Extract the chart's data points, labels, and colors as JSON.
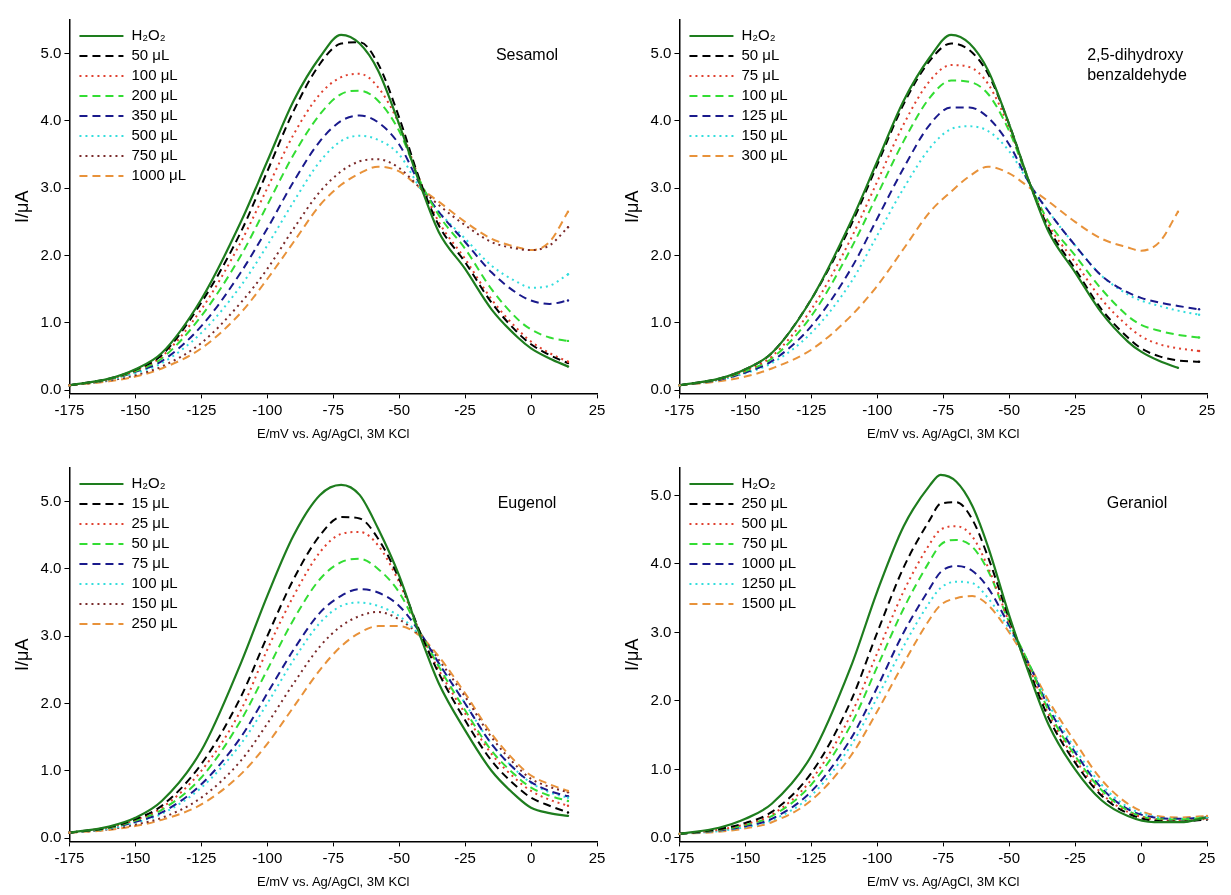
{
  "chart_data": [
    {
      "type": "line",
      "annotations": [
        "Sesamol"
      ],
      "xlabel": "E/mV vs. Ag/AgCl, 3M KCl",
      "ylabel": "I/μA",
      "legend": "top left",
      "xlim": [
        -175,
        25
      ],
      "xticks": [
        -175,
        -150,
        -125,
        -100,
        -75,
        -50,
        -25,
        0,
        25
      ],
      "ylim": [
        -0.05,
        5.5
      ],
      "yticks": [
        {
          "value": 0,
          "label": "0.0"
        },
        {
          "value": 1,
          "label": "1.0"
        },
        {
          "value": 2,
          "label": "2.0"
        },
        {
          "value": 3,
          "label": "3.0"
        },
        {
          "value": 4,
          "label": "4.0"
        },
        {
          "value": 5,
          "label": "5.0"
        }
      ],
      "x": [
        -175,
        -160,
        -150,
        -140,
        -125,
        -110,
        -100,
        -90,
        -80,
        -72,
        -65,
        -58,
        -50,
        -42,
        -35,
        -25,
        -15,
        -5,
        0,
        7,
        14
      ],
      "series": [
        {
          "name": "H₂O₂",
          "color": "#1e7d1e",
          "line_style": "solid",
          "values": [
            0.07,
            0.17,
            0.31,
            0.55,
            1.35,
            2.5,
            3.4,
            4.3,
            4.95,
            5.28,
            5.15,
            4.75,
            3.95,
            3.05,
            2.35,
            1.8,
            1.2,
            0.78,
            0.62,
            0.47,
            0.35
          ]
        },
        {
          "name": "50 μL",
          "color": "#000000",
          "line_style": "dashed",
          "values": [
            0.07,
            0.17,
            0.3,
            0.52,
            1.3,
            2.35,
            3.25,
            4.15,
            4.85,
            5.15,
            5.17,
            4.85,
            4.05,
            3.1,
            2.45,
            1.9,
            1.3,
            0.85,
            0.68,
            0.52,
            0.4
          ]
        },
        {
          "name": "100 μL",
          "color": "#e0402f",
          "line_style": "dotted",
          "values": [
            0.07,
            0.16,
            0.29,
            0.5,
            1.2,
            2.2,
            3.0,
            3.8,
            4.4,
            4.65,
            4.7,
            4.5,
            3.95,
            3.1,
            2.5,
            1.95,
            1.35,
            0.9,
            0.72,
            0.55,
            0.42
          ]
        },
        {
          "name": "200 μL",
          "color": "#33dd33",
          "line_style": "dashed",
          "values": [
            0.07,
            0.16,
            0.28,
            0.47,
            1.1,
            2.0,
            2.75,
            3.5,
            4.1,
            4.4,
            4.45,
            4.3,
            3.85,
            3.1,
            2.6,
            2.1,
            1.5,
            1.05,
            0.9,
            0.78,
            0.73
          ]
        },
        {
          "name": "350 μL",
          "color": "#1a1a8c",
          "line_style": "dashed",
          "values": [
            0.07,
            0.16,
            0.27,
            0.43,
            0.95,
            1.75,
            2.4,
            3.1,
            3.7,
            4.0,
            4.08,
            3.98,
            3.65,
            3.05,
            2.65,
            2.2,
            1.75,
            1.43,
            1.33,
            1.28,
            1.33
          ]
        },
        {
          "name": "500 μL",
          "color": "#33dddd",
          "line_style": "dotted",
          "values": [
            0.07,
            0.15,
            0.25,
            0.4,
            0.85,
            1.55,
            2.15,
            2.8,
            3.4,
            3.7,
            3.78,
            3.72,
            3.5,
            3.0,
            2.65,
            2.25,
            1.85,
            1.6,
            1.52,
            1.55,
            1.72
          ]
        },
        {
          "name": "750 μL",
          "color": "#7a2a2a",
          "line_style": "dotted",
          "values": [
            0.07,
            0.14,
            0.22,
            0.35,
            0.7,
            1.3,
            1.8,
            2.4,
            2.95,
            3.25,
            3.4,
            3.43,
            3.3,
            3.0,
            2.75,
            2.45,
            2.2,
            2.1,
            2.08,
            2.15,
            2.42
          ]
        },
        {
          "name": "1000 μL",
          "color": "#e8923a",
          "line_style": "dashed",
          "values": [
            0.07,
            0.13,
            0.2,
            0.32,
            0.62,
            1.15,
            1.65,
            2.2,
            2.75,
            3.05,
            3.22,
            3.32,
            3.25,
            3.0,
            2.8,
            2.5,
            2.25,
            2.12,
            2.08,
            2.2,
            2.65
          ]
        }
      ]
    },
    {
      "type": "line",
      "annotations": [
        "2,5-dihydroxy benzaldehyde"
      ],
      "xlabel": "E/mV vs. Ag/AgCl, 3M KCl",
      "ylabel": "I/μA",
      "legend": "top left",
      "xlim": [
        -175,
        25
      ],
      "xticks": [
        -175,
        -150,
        -125,
        -100,
        -75,
        -50,
        -25,
        0,
        25
      ],
      "ylim": [
        -0.05,
        5.5
      ],
      "yticks": [
        {
          "value": 0,
          "label": "0.0"
        },
        {
          "value": 1,
          "label": "1.0"
        },
        {
          "value": 2,
          "label": "2.0"
        },
        {
          "value": 3,
          "label": "3.0"
        },
        {
          "value": 4,
          "label": "4.0"
        },
        {
          "value": 5,
          "label": "5.0"
        }
      ],
      "x": [
        -175,
        -160,
        -150,
        -140,
        -125,
        -110,
        -100,
        -90,
        -80,
        -72,
        -65,
        -58,
        -50,
        -42,
        -35,
        -25,
        -15,
        -5,
        0,
        7,
        14,
        22
      ],
      "series": [
        {
          "name": "H₂O₂",
          "color": "#1e7d1e",
          "line_style": "solid",
          "values": [
            0.07,
            0.17,
            0.31,
            0.55,
            1.35,
            2.5,
            3.4,
            4.3,
            4.95,
            5.28,
            5.15,
            4.75,
            3.95,
            3.05,
            2.35,
            1.75,
            1.15,
            0.72,
            0.57,
            0.43,
            0.33,
            null
          ]
        },
        {
          "name": "50 μL",
          "color": "#000000",
          "line_style": "dashed",
          "values": [
            0.07,
            0.17,
            0.31,
            0.55,
            1.35,
            2.45,
            3.35,
            4.25,
            4.9,
            5.15,
            5.05,
            4.7,
            3.95,
            3.05,
            2.4,
            1.8,
            1.2,
            0.78,
            0.62,
            0.5,
            0.44,
            0.42
          ]
        },
        {
          "name": "75 μL",
          "color": "#e0402f",
          "line_style": "dotted",
          "values": [
            0.07,
            0.16,
            0.29,
            0.5,
            1.2,
            2.25,
            3.1,
            3.95,
            4.6,
            4.83,
            4.8,
            4.55,
            3.9,
            3.05,
            2.45,
            1.9,
            1.35,
            0.95,
            0.8,
            0.68,
            0.62,
            0.58
          ]
        },
        {
          "name": "100 μL",
          "color": "#33dd33",
          "line_style": "dashed",
          "values": [
            0.07,
            0.16,
            0.28,
            0.47,
            1.1,
            2.1,
            2.9,
            3.7,
            4.35,
            4.6,
            4.58,
            4.4,
            3.85,
            3.05,
            2.5,
            2.0,
            1.5,
            1.1,
            0.97,
            0.88,
            0.82,
            0.78
          ]
        },
        {
          "name": "125 μL",
          "color": "#1a1a8c",
          "line_style": "dashed",
          "values": [
            0.07,
            0.15,
            0.26,
            0.43,
            0.95,
            1.8,
            2.55,
            3.3,
            3.95,
            4.2,
            4.2,
            4.05,
            3.65,
            3.05,
            2.65,
            2.15,
            1.7,
            1.45,
            1.37,
            1.3,
            1.25,
            1.2
          ]
        },
        {
          "name": "150 μL",
          "color": "#33dddd",
          "line_style": "dotted",
          "values": [
            0.07,
            0.15,
            0.25,
            0.4,
            0.85,
            1.6,
            2.3,
            3.0,
            3.6,
            3.88,
            3.92,
            3.85,
            3.55,
            3.05,
            2.65,
            2.15,
            1.7,
            1.42,
            1.33,
            1.25,
            1.18,
            1.12
          ]
        },
        {
          "name": "300 μL",
          "color": "#e8923a",
          "line_style": "dashed",
          "values": [
            0.07,
            0.13,
            0.2,
            0.32,
            0.6,
            1.1,
            1.55,
            2.1,
            2.65,
            2.95,
            3.18,
            3.32,
            3.22,
            3.0,
            2.8,
            2.5,
            2.25,
            2.12,
            2.07,
            2.2,
            2.65,
            null
          ]
        }
      ]
    },
    {
      "type": "line",
      "annotations": [
        "Eugenol"
      ],
      "xlabel": "E/mV vs. Ag/AgCl, 3M KCl",
      "ylabel": "I/μA",
      "legend": "top left",
      "xlim": [
        -175,
        25
      ],
      "xticks": [
        -175,
        -150,
        -125,
        -100,
        -75,
        -50,
        -25,
        0,
        25
      ],
      "ylim": [
        -0.05,
        5.5
      ],
      "yticks": [
        {
          "value": 0,
          "label": "0.0"
        },
        {
          "value": 1,
          "label": "1.0"
        },
        {
          "value": 2,
          "label": "2.0"
        },
        {
          "value": 3,
          "label": "3.0"
        },
        {
          "value": 4,
          "label": "4.0"
        },
        {
          "value": 5,
          "label": "5.0"
        }
      ],
      "x": [
        -175,
        -160,
        -150,
        -140,
        -125,
        -110,
        -100,
        -90,
        -80,
        -72,
        -65,
        -58,
        -50,
        -42,
        -35,
        -25,
        -15,
        -5,
        0,
        7,
        14
      ],
      "series": [
        {
          "name": "H₂O₂",
          "color": "#1e7d1e",
          "line_style": "solid",
          "values": [
            0.08,
            0.17,
            0.3,
            0.55,
            1.3,
            2.6,
            3.6,
            4.5,
            5.1,
            5.25,
            5.1,
            4.6,
            3.9,
            3.0,
            2.3,
            1.6,
            1.0,
            0.6,
            0.45,
            0.37,
            0.33
          ]
        },
        {
          "name": "15 μL",
          "color": "#000000",
          "line_style": "dashed",
          "values": [
            0.08,
            0.16,
            0.28,
            0.48,
            1.1,
            2.1,
            3.0,
            3.85,
            4.5,
            4.77,
            4.75,
            4.45,
            3.85,
            3.05,
            2.45,
            1.75,
            1.15,
            0.75,
            0.6,
            0.48,
            0.38
          ]
        },
        {
          "name": "25 μL",
          "color": "#e0402f",
          "line_style": "dotted",
          "values": [
            0.08,
            0.16,
            0.27,
            0.45,
            1.0,
            1.9,
            2.8,
            3.6,
            4.25,
            4.52,
            4.55,
            4.35,
            3.8,
            3.05,
            2.5,
            1.85,
            1.25,
            0.85,
            0.7,
            0.57,
            0.48
          ]
        },
        {
          "name": "50 μL",
          "color": "#33dd33",
          "line_style": "dashed",
          "values": [
            0.08,
            0.15,
            0.26,
            0.42,
            0.9,
            1.75,
            2.5,
            3.25,
            3.85,
            4.1,
            4.15,
            4.0,
            3.65,
            3.05,
            2.55,
            1.9,
            1.3,
            0.9,
            0.75,
            0.63,
            0.55
          ]
        },
        {
          "name": "75 μL",
          "color": "#1a1a8c",
          "line_style": "dashed",
          "values": [
            0.08,
            0.15,
            0.24,
            0.38,
            0.8,
            1.5,
            2.15,
            2.8,
            3.35,
            3.6,
            3.7,
            3.65,
            3.45,
            3.05,
            2.6,
            2.0,
            1.4,
            0.98,
            0.83,
            0.7,
            0.62
          ]
        },
        {
          "name": "100 μL",
          "color": "#33dddd",
          "line_style": "dotted",
          "values": [
            0.08,
            0.14,
            0.23,
            0.36,
            0.75,
            1.4,
            2.0,
            2.65,
            3.2,
            3.45,
            3.5,
            3.45,
            3.3,
            3.0,
            2.6,
            2.0,
            1.4,
            0.98,
            0.82,
            0.68,
            0.6
          ]
        },
        {
          "name": "150 μL",
          "color": "#7a2a2a",
          "line_style": "dotted",
          "values": [
            0.08,
            0.13,
            0.2,
            0.3,
            0.6,
            1.15,
            1.7,
            2.3,
            2.85,
            3.15,
            3.3,
            3.36,
            3.25,
            3.0,
            2.65,
            2.1,
            1.5,
            1.05,
            0.88,
            0.76,
            0.68
          ]
        },
        {
          "name": "250 μL",
          "color": "#e8923a",
          "line_style": "dashed",
          "values": [
            0.08,
            0.12,
            0.18,
            0.27,
            0.5,
            0.95,
            1.4,
            1.95,
            2.5,
            2.85,
            3.05,
            3.15,
            3.15,
            3.0,
            2.7,
            2.15,
            1.55,
            1.1,
            0.93,
            0.8,
            0.7
          ]
        }
      ]
    },
    {
      "type": "line",
      "annotations": [
        "Geraniol"
      ],
      "xlabel": "E/mV vs. Ag/AgCl, 3M KCl",
      "ylabel": "I/μA",
      "legend": "top left",
      "xlim": [
        -175,
        25
      ],
      "xticks": [
        -175,
        -150,
        -125,
        -100,
        -75,
        -50,
        -25,
        0,
        25
      ],
      "ylim": [
        -0.05,
        5.4
      ],
      "yticks": [
        {
          "value": 0,
          "label": "0.0"
        },
        {
          "value": 1,
          "label": "1.0"
        },
        {
          "value": 2,
          "label": "2.0"
        },
        {
          "value": 3,
          "label": "3.0"
        },
        {
          "value": 4,
          "label": "4.0"
        },
        {
          "value": 5,
          "label": "5.0"
        }
      ],
      "x": [
        -175,
        -160,
        -150,
        -140,
        -125,
        -110,
        -100,
        -90,
        -80,
        -76,
        -70,
        -64,
        -58,
        -50,
        -42,
        -35,
        -25,
        -15,
        -5,
        5,
        15,
        25
      ],
      "series": [
        {
          "name": "H₂O₂",
          "color": "#1e7d1e",
          "line_style": "solid",
          "values": [
            0.06,
            0.15,
            0.28,
            0.5,
            1.2,
            2.5,
            3.6,
            4.55,
            5.15,
            5.3,
            5.2,
            4.85,
            4.25,
            3.25,
            2.35,
            1.65,
            1.0,
            0.55,
            0.32,
            0.23,
            0.23,
            0.3
          ]
        },
        {
          "name": "250 μL",
          "color": "#000000",
          "line_style": "dashed",
          "values": [
            0.06,
            0.13,
            0.22,
            0.38,
            0.95,
            2.0,
            3.0,
            3.95,
            4.65,
            4.88,
            4.9,
            4.65,
            4.1,
            3.2,
            2.4,
            1.75,
            1.1,
            0.62,
            0.36,
            0.25,
            0.24,
            0.27
          ]
        },
        {
          "name": "500 μL",
          "color": "#e0402f",
          "line_style": "dotted",
          "values": [
            0.06,
            0.12,
            0.2,
            0.34,
            0.85,
            1.8,
            2.7,
            3.6,
            4.3,
            4.5,
            4.55,
            4.4,
            3.95,
            3.15,
            2.45,
            1.8,
            1.15,
            0.65,
            0.38,
            0.27,
            0.25,
            0.28
          ]
        },
        {
          "name": "750 μL",
          "color": "#33dd33",
          "line_style": "dashed",
          "values": [
            0.06,
            0.12,
            0.19,
            0.32,
            0.78,
            1.65,
            2.5,
            3.35,
            4.05,
            4.28,
            4.35,
            4.25,
            3.9,
            3.15,
            2.5,
            1.85,
            1.2,
            0.7,
            0.4,
            0.28,
            0.27,
            0.3
          ]
        },
        {
          "name": "1000 μL",
          "color": "#1a1a8c",
          "line_style": "dashed",
          "values": [
            0.06,
            0.11,
            0.17,
            0.28,
            0.68,
            1.45,
            2.2,
            3.0,
            3.65,
            3.88,
            3.97,
            3.9,
            3.65,
            3.1,
            2.5,
            1.9,
            1.25,
            0.73,
            0.42,
            0.3,
            0.28,
            0.3
          ]
        },
        {
          "name": "1250 μL",
          "color": "#33dddd",
          "line_style": "dotted",
          "values": [
            0.06,
            0.1,
            0.16,
            0.26,
            0.62,
            1.35,
            2.05,
            2.8,
            3.45,
            3.65,
            3.74,
            3.72,
            3.5,
            3.05,
            2.5,
            1.95,
            1.3,
            0.78,
            0.45,
            0.31,
            0.28,
            0.3
          ]
        },
        {
          "name": "1500 μL",
          "color": "#e8923a",
          "line_style": "dashed",
          "values": [
            0.06,
            0.09,
            0.14,
            0.23,
            0.55,
            1.2,
            1.85,
            2.55,
            3.2,
            3.4,
            3.5,
            3.53,
            3.4,
            3.0,
            2.5,
            2.0,
            1.4,
            0.85,
            0.5,
            0.33,
            0.3,
            0.32
          ]
        }
      ]
    }
  ]
}
